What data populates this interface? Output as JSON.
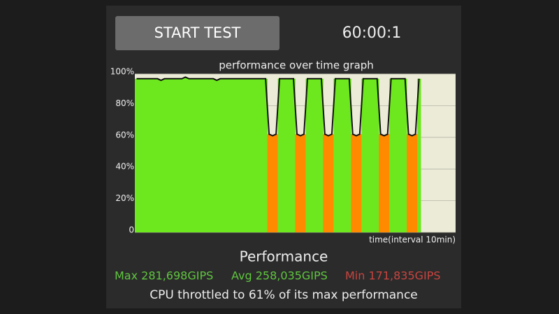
{
  "button": {
    "label": "START TEST"
  },
  "timer": "60:00:1",
  "chart_data": {
    "type": "performance-area",
    "title": "performance over time graph",
    "x_label": "time(interval 10min)",
    "values": [
      97,
      97,
      97,
      97,
      97,
      97,
      97,
      96,
      97,
      97,
      97,
      97,
      97,
      97,
      98,
      97,
      97,
      97,
      97,
      97,
      97,
      97,
      97,
      96,
      97,
      97,
      97,
      97,
      97,
      97,
      97,
      97,
      97,
      97,
      97,
      97,
      97,
      97,
      62,
      61,
      62,
      97,
      97,
      97,
      97,
      97,
      62,
      61,
      62,
      97,
      97,
      97,
      97,
      97,
      62,
      61,
      62,
      97,
      97,
      97,
      97,
      97,
      62,
      61,
      62,
      97,
      97,
      97,
      97,
      97,
      62,
      61,
      62,
      97,
      97,
      97,
      97,
      97,
      62,
      61,
      62,
      97,
      null,
      null,
      null,
      null,
      null,
      null,
      null,
      null,
      null,
      null
    ],
    "colors": {
      "high": "#6ee81e",
      "low": "#ff8a00",
      "line": "#111111",
      "empty": "#ecebd8"
    },
    "ylim": [
      0,
      100
    ],
    "yticks": [
      0,
      {
        "value": 20,
        "label": "20%"
      },
      {
        "value": 40,
        "label": "40%"
      },
      {
        "value": 60,
        "label": "60%"
      },
      {
        "value": 80,
        "label": "80%"
      },
      {
        "value": 100,
        "label": "100%"
      }
    ],
    "grid": true
  },
  "results": {
    "heading": "Performance",
    "max": "Max 281,698GIPS",
    "avg": "Avg 258,035GIPS",
    "min": "Min 171,835GIPS",
    "summary": "CPU throttled to 61% of its max performance"
  }
}
